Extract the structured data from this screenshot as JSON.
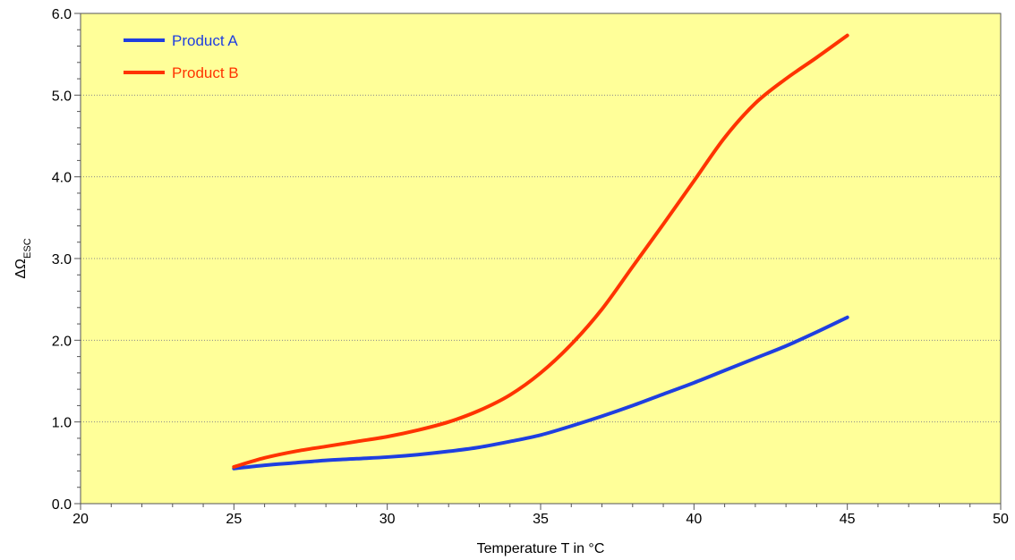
{
  "chart_data": {
    "type": "line",
    "xlabel": "Temperature T in °C",
    "ylabel_main": "ΔΩ",
    "ylabel_sub": "ESC",
    "xlim": [
      20,
      50
    ],
    "ylim": [
      0,
      6
    ],
    "xticks": [
      20,
      25,
      30,
      35,
      40,
      45,
      50
    ],
    "yticks": [
      "0.0",
      "1.0",
      "2.0",
      "3.0",
      "4.0",
      "5.0",
      "6.0"
    ],
    "grid": "horizontal dotted",
    "legend_position": "top-left",
    "plot_background": "#ffff99",
    "series": [
      {
        "name": "Product A",
        "color": "#1f3fe0",
        "x": [
          25,
          26,
          27,
          28,
          29,
          30,
          31,
          32,
          33,
          34,
          35,
          36,
          37,
          38,
          39,
          40,
          41,
          42,
          43,
          44,
          45
        ],
        "y": [
          0.43,
          0.47,
          0.5,
          0.53,
          0.55,
          0.57,
          0.6,
          0.64,
          0.69,
          0.76,
          0.84,
          0.95,
          1.07,
          1.2,
          1.34,
          1.48,
          1.63,
          1.78,
          1.93,
          2.1,
          2.28
        ]
      },
      {
        "name": "Product B",
        "color": "#ff3300",
        "x": [
          25,
          26,
          27,
          28,
          29,
          30,
          31,
          32,
          33,
          34,
          35,
          36,
          37,
          38,
          39,
          40,
          41,
          42,
          43,
          44,
          45
        ],
        "y": [
          0.45,
          0.56,
          0.64,
          0.7,
          0.76,
          0.82,
          0.9,
          1.0,
          1.14,
          1.33,
          1.6,
          1.95,
          2.38,
          2.9,
          3.42,
          3.95,
          4.48,
          4.9,
          5.2,
          5.46,
          5.73
        ]
      }
    ]
  }
}
